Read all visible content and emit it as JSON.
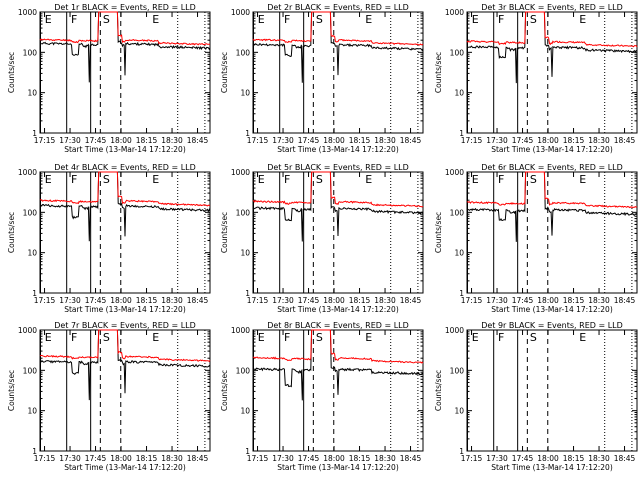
{
  "x_axis_title": "Start Time (13-Mar-14 17:12:20)",
  "y_axis_title": "Counts/sec",
  "x_tick_labels": [
    "17:15",
    "17:30",
    "17:45",
    "18:00",
    "18:15",
    "18:30",
    "18:45"
  ],
  "y_tick_labels": [
    "1",
    "10",
    "100",
    "1000"
  ],
  "markers": [
    "E",
    "F",
    "S",
    "E"
  ],
  "colors": {
    "events": "#000000",
    "lld": "#ff0000"
  },
  "chart_data": [
    {
      "type": "line",
      "title": "Det 1r BLACK = Events, RED = LLD",
      "yscale": "log",
      "ylim": [
        1,
        1000
      ],
      "series": [
        {
          "name": "Events",
          "baseline": 170,
          "dip": 90
        },
        {
          "name": "LLD",
          "baseline": 210
        }
      ]
    },
    {
      "type": "line",
      "title": "Det 2r BLACK = Events, RED = LLD",
      "yscale": "log",
      "ylim": [
        1,
        1000
      ],
      "series": [
        {
          "name": "Events",
          "baseline": 160,
          "dip": 90
        },
        {
          "name": "LLD",
          "baseline": 210
        }
      ]
    },
    {
      "type": "line",
      "title": "Det 3r BLACK = Events, RED = LLD",
      "yscale": "log",
      "ylim": [
        1,
        1000
      ],
      "series": [
        {
          "name": "Events",
          "baseline": 140,
          "dip": 80
        },
        {
          "name": "LLD",
          "baseline": 190
        }
      ]
    },
    {
      "type": "line",
      "title": "Det 4r BLACK = Events, RED = LLD",
      "yscale": "log",
      "ylim": [
        1,
        1000
      ],
      "series": [
        {
          "name": "Events",
          "baseline": 150,
          "dip": 80
        },
        {
          "name": "LLD",
          "baseline": 200
        }
      ]
    },
    {
      "type": "line",
      "title": "Det 5r BLACK = Events, RED = LLD",
      "yscale": "log",
      "ylim": [
        1,
        1000
      ],
      "series": [
        {
          "name": "Events",
          "baseline": 130,
          "dip": 70
        },
        {
          "name": "LLD",
          "baseline": 190
        }
      ]
    },
    {
      "type": "line",
      "title": "Det 6r BLACK = Events, RED = LLD",
      "yscale": "log",
      "ylim": [
        1,
        1000
      ],
      "series": [
        {
          "name": "Events",
          "baseline": 120,
          "dip": 70
        },
        {
          "name": "LLD",
          "baseline": 180
        }
      ]
    },
    {
      "type": "line",
      "title": "Det 7r BLACK = Events, RED = LLD",
      "yscale": "log",
      "ylim": [
        1,
        1000
      ],
      "series": [
        {
          "name": "Events",
          "baseline": 170,
          "dip": 90
        },
        {
          "name": "LLD",
          "baseline": 230
        }
      ]
    },
    {
      "type": "line",
      "title": "Det 8r BLACK = Events, RED = LLD",
      "yscale": "log",
      "ylim": [
        1,
        1000
      ],
      "series": [
        {
          "name": "Events",
          "baseline": 110,
          "dip": 45
        },
        {
          "name": "LLD",
          "baseline": 210
        }
      ]
    },
    {
      "type": "line",
      "title": "Det 9r BLACK = Events, RED = LLD",
      "yscale": "log",
      "ylim": [
        1,
        1000
      ],
      "series": []
    }
  ]
}
